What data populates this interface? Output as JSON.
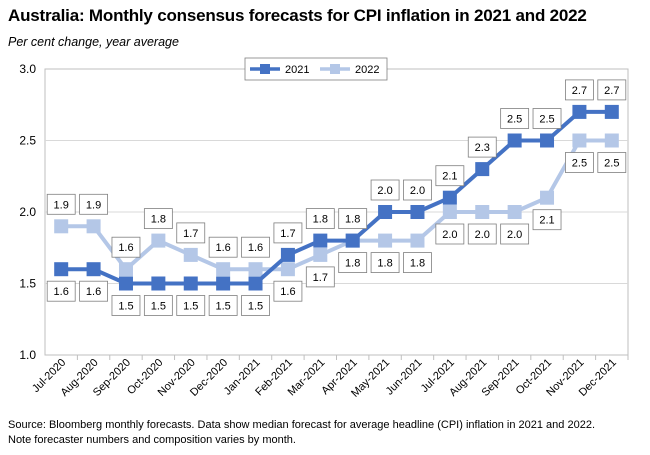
{
  "title": "Australia: Monthly consensus forecasts for CPI inflation in 2021 and 2022",
  "subtitle": "Per cent change, year average",
  "source": "Source: Bloomberg monthly forecasts.  Data show median forecast for average headline (CPI) inflation in 2021 and 2022.",
  "note": "Note forecaster numbers and composition varies by month.",
  "chart_data": {
    "type": "line",
    "categories": [
      "Jul-2020",
      "Aug-2020",
      "Sep-2020",
      "Oct-2020",
      "Nov-2020",
      "Dec-2020",
      "Jan-2021",
      "Feb-2021",
      "Mar-2021",
      "Apr-2021",
      "May-2021",
      "Jun-2021",
      "Jul-2021",
      "Aug-2021",
      "Sep-2021",
      "Oct-2021",
      "Nov-2021",
      "Dec-2021"
    ],
    "series": [
      {
        "name": "2021",
        "color": "#4472C4",
        "values": [
          1.6,
          1.6,
          1.5,
          1.5,
          1.5,
          1.5,
          1.5,
          1.7,
          1.8,
          1.8,
          2.0,
          2.0,
          2.1,
          2.3,
          2.5,
          2.5,
          2.7,
          2.7
        ],
        "labels": [
          "1.6",
          "1.6",
          "1.5",
          "1.5",
          "1.5",
          "1.5",
          "1.5",
          "1.7",
          "1.8",
          "1.8",
          "2.0",
          "2.0",
          "2.1",
          "2.3",
          "2.5",
          "2.5",
          "2.7",
          "2.7"
        ]
      },
      {
        "name": "2022",
        "color": "#B4C7E7",
        "values": [
          1.9,
          1.9,
          1.6,
          1.8,
          1.7,
          1.6,
          1.6,
          1.6,
          1.7,
          1.8,
          1.8,
          1.8,
          2.0,
          2.0,
          2.0,
          2.1,
          2.5,
          2.5
        ],
        "labels": [
          "1.9",
          "1.9",
          "1.6",
          "1.8",
          "1.7",
          "1.6",
          "1.6",
          "1.6",
          "1.7",
          "1.8",
          "1.8",
          "1.8",
          "2.0",
          "2.0",
          "2.0",
          "2.1",
          "2.5",
          "2.5"
        ]
      }
    ],
    "yticks": [
      "1.0",
      "1.5",
      "2.0",
      "2.5",
      "3.0"
    ],
    "ylim": [
      1.0,
      3.0
    ],
    "grid": true,
    "legend_position": "top-center"
  }
}
